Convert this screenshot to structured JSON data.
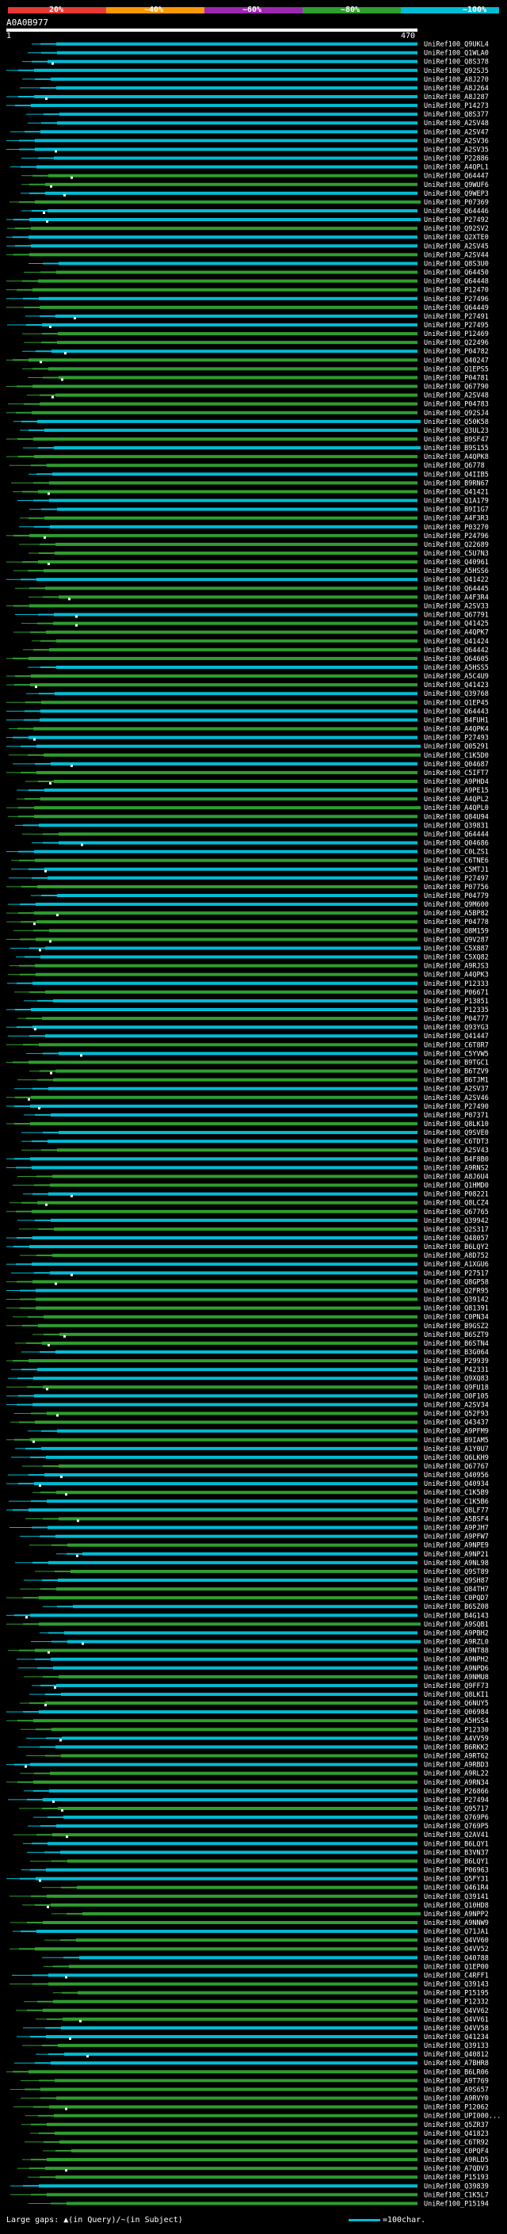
{
  "header": {
    "percent_labels": [
      "20%",
      "~40%",
      "~60%",
      "~80%",
      "~100%"
    ],
    "colors": [
      "#e53935",
      "#ff9800",
      "#9c27b0",
      "#2e9e2e",
      "#00bcd4"
    ],
    "query_id": "A0A0B977",
    "ruler_start": "1",
    "ruler_end": "470"
  },
  "hits": [
    "UniRef100_Q9UKL4",
    "UniRef100_Q1WLA0",
    "UniRef100_Q8S378",
    "UniRef100_Q92SJ5",
    "UniRef100_A8J270",
    "UniRef100_A8J264",
    "UniRef100_A8J287",
    "UniRef100_P14273",
    "UniRef100_Q8S377",
    "UniRef100_A2SV48",
    "UniRef100_A2SV47",
    "UniRef100_A2SV36",
    "UniRef100_A2SV35",
    "UniRef100_P22886",
    "UniRef100_A4QPL1",
    "UniRef100_Q64447",
    "UniRef100_Q9WUF6",
    "UniRef100_Q9WEP3",
    "UniRef100_P07369",
    "UniRef100_Q64446",
    "UniRef100_P27492",
    "UniRef100_Q92SV2",
    "UniRef100_Q2XTE0",
    "UniRef100_A2SV45",
    "UniRef100_A2SV44",
    "UniRef100_Q8S3U0",
    "UniRef100_Q64450",
    "UniRef100_Q64448",
    "UniRef100_P12470",
    "UniRef100_P27496",
    "UniRef100_Q64449",
    "UniRef100_P27491",
    "UniRef100_P27495",
    "UniRef100_P12469",
    "UniRef100_Q22496",
    "UniRef100_P04782",
    "UniRef100_Q40247",
    "UniRef100_Q1EPS5",
    "UniRef100_P04781",
    "UniRef100_Q67790",
    "UniRef100_A2SV48",
    "UniRef100_P04783",
    "UniRef100_Q92SJ4",
    "UniRef100_Q50K58",
    "UniRef100_Q3UL23",
    "UniRef100_B9SF47",
    "UniRef100_B9S155",
    "UniRef100_A4QPK8",
    "UniRef100_Q6778",
    "UniRef100_Q4IIB5",
    "UniRef100_B9RN67",
    "UniRef100_Q41421",
    "UniRef100_Q1A179",
    "UniRef100_B9I1G7",
    "UniRef100_A4F3R3",
    "UniRef100_P03270",
    "UniRef100_P24796",
    "UniRef100_Q22689",
    "UniRef100_C5U7N3",
    "UniRef100_Q40961",
    "UniRef100_A5HSS6",
    "UniRef100_Q41422",
    "UniRef100_Q64445",
    "UniRef100_A4F3R4",
    "UniRef100_A2SV33",
    "UniRef100_Q67791",
    "UniRef100_Q41425",
    "UniRef100_A4QPK7",
    "UniRef100_Q41424",
    "UniRef100_Q64442",
    "UniRef100_Q64605",
    "UniRef100_A5HSS5",
    "UniRef100_A5C4U9",
    "UniRef100_Q41423",
    "UniRef100_Q39768",
    "UniRef100_Q1EP45",
    "UniRef100_Q64443",
    "UniRef100_B4FUH1",
    "UniRef100_A4QPK4",
    "UniRef100_P27493",
    "UniRef100_Q05291",
    "UniRef100_C1K5D0",
    "UniRef100_Q04687",
    "UniRef100_C5IFT7",
    "UniRef100_A9PHD4",
    "UniRef100_A9PE15",
    "UniRef100_A4QPL2",
    "UniRef100_A4QPL0",
    "UniRef100_Q84U94",
    "UniRef100_Q39831",
    "UniRef100_Q64444",
    "UniRef100_Q04686",
    "UniRef100_C0LZS1",
    "UniRef100_C6TNE6",
    "UniRef100_C5MTJ1",
    "UniRef100_P27497",
    "UniRef100_P07756",
    "UniRef100_P04779",
    "UniRef100_Q9M600",
    "UniRef100_A5BP82",
    "UniRef100_P04778",
    "UniRef100_O8M159",
    "UniRef100_Q9V287",
    "UniRef100_C5X887",
    "UniRef100_C5XQ82",
    "UniRef100_A9RJS3",
    "UniRef100_A4QPK3",
    "UniRef100_P12333",
    "UniRef100_P06671",
    "UniRef100_P13851",
    "UniRef100_P12335",
    "UniRef100_P04777",
    "UniRef100_Q93YG3",
    "UniRef100_Q41447",
    "UniRef100_C6T8R7",
    "UniRef100_C5YVW5",
    "UniRef100_B9TGC1",
    "UniRef100_B6TZV9",
    "UniRef100_B6TJM1",
    "UniRef100_A2SV37",
    "UniRef100_A2SV46",
    "UniRef100_P27490",
    "UniRef100_P07371",
    "UniRef100_Q8LK10",
    "UniRef100_Q9SVE0",
    "UniRef100_C6TDT3",
    "UniRef100_A2SV43",
    "UniRef100_B4F8B0",
    "UniRef100_A9RNS2",
    "UniRef100_A8J6U4",
    "UniRef100_Q1HMD0",
    "UniRef100_P08221",
    "UniRef100_Q8LCZ4",
    "UniRef100_Q67765",
    "UniRef100_Q39942",
    "UniRef100_Q2S317",
    "UniRef100_Q48057",
    "UniRef100_B6LQY2",
    "UniRef100_A8D752",
    "UniRef100_A1XGU6",
    "UniRef100_P27517",
    "UniRef100_Q8GP58",
    "UniRef100_Q2FR95",
    "UniRef100_Q39142",
    "UniRef100_Q81391",
    "UniRef100_C0PN34",
    "UniRef100_B9GSZ2",
    "UniRef100_B6SZT9",
    "UniRef100_B6STN4",
    "UniRef100_B3G064",
    "UniRef100_P29939",
    "UniRef100_P42331",
    "UniRef100_Q9XQ83",
    "UniRef100_Q9FU18",
    "UniRef100_O0F105",
    "UniRef100_A2SV34",
    "UniRef100_Q52F93",
    "UniRef100_Q43437",
    "UniRef100_A9PFM9",
    "UniRef100_B9IAM5",
    "UniRef100_A1Y0U7",
    "UniRef100_Q6LKH9",
    "UniRef100_Q67767",
    "UniRef100_Q40956",
    "UniRef100_Q40934",
    "UniRef100_C1K5B9",
    "UniRef100_C1K5B6",
    "UniRef100_Q8LF77",
    "UniRef100_A5BSF4",
    "UniRef100_A9PJH7",
    "UniRef100_A9PFW7",
    "UniRef100_A9NPE9",
    "UniRef100_A9NP21",
    "UniRef100_A9NL98",
    "UniRef100_Q9ST89",
    "UniRef100_Q9SH87",
    "UniRef100_Q84TH7",
    "UniRef100_C0PQD7",
    "UniRef100_B6SZ08",
    "UniRef100_B4G143",
    "UniRef100_A9SQB1",
    "UniRef100_A9PBH2",
    "UniRef100_A9RZL0",
    "UniRef100_A9NT88",
    "UniRef100_A9NPH2",
    "UniRef100_A9NPD6",
    "UniRef100_A9NMU8",
    "UniRef100_Q9FF73",
    "UniRef100_Q8LKI1",
    "UniRef100_Q6NUY5",
    "UniRef100_Q06984",
    "UniRef100_A5HSS4",
    "UniRef100_P12330",
    "UniRef100_A4VV59",
    "UniRef100_B6RKK2",
    "UniRef100_A9RT62",
    "UniRef100_A9RBD3",
    "UniRef100_A9RL22",
    "UniRef100_A9RN34",
    "UniRef100_P26866",
    "UniRef100_P27494",
    "UniRef100_Q95717",
    "UniRef100_Q769P6",
    "UniRef100_Q769P5",
    "UniRef100_Q2AV41",
    "UniRef100_B6LQY1",
    "UniRef100_B3VN37",
    "UniRef100_B6LQY1",
    "UniRef100_P06963",
    "UniRef100_Q5FY31",
    "UniRef100_Q461R4",
    "UniRef100_Q39141",
    "UniRef100_Q10HD8",
    "UniRef100_A9NPP2",
    "UniRef100_A9NNW9",
    "UniRef100_Q71JA1",
    "UniRef100_Q4VV60",
    "UniRef100_Q4VV52",
    "UniRef100_Q40788",
    "UniRef100_Q1EP00",
    "UniRef100_C4RFF1",
    "UniRef100_Q39143",
    "UniRef100_P15195",
    "UniRef100_P12332",
    "UniRef100_Q4VV62",
    "UniRef100_Q4VV61",
    "UniRef100_Q4VV58",
    "UniRef100_Q41234",
    "UniRef100_Q39133",
    "UniRef100_Q40812",
    "UniRef100_A7BHR8",
    "UniRef100_B6LR06",
    "UniRef100_A9T769",
    "UniRef100_A9S657",
    "UniRef100_A9RVY0",
    "UniRef100_P12062",
    "UniRef100_UPI000...",
    "UniRef100_Q5ZR37",
    "UniRef100_Q41823",
    "UniRef100_C6TR92",
    "UniRef100_C0PQF4",
    "UniRef100_A9RLD5",
    "UniRef100_A7QDV3",
    "UniRef100_P15193",
    "UniRef100_Q39839",
    "UniRef100_C1K5L7",
    "UniRef100_P15194"
  ],
  "footer": {
    "large_gaps": "Large gaps: ▲(in Query)/~(in Subject)",
    "scale_label": "=100char."
  }
}
